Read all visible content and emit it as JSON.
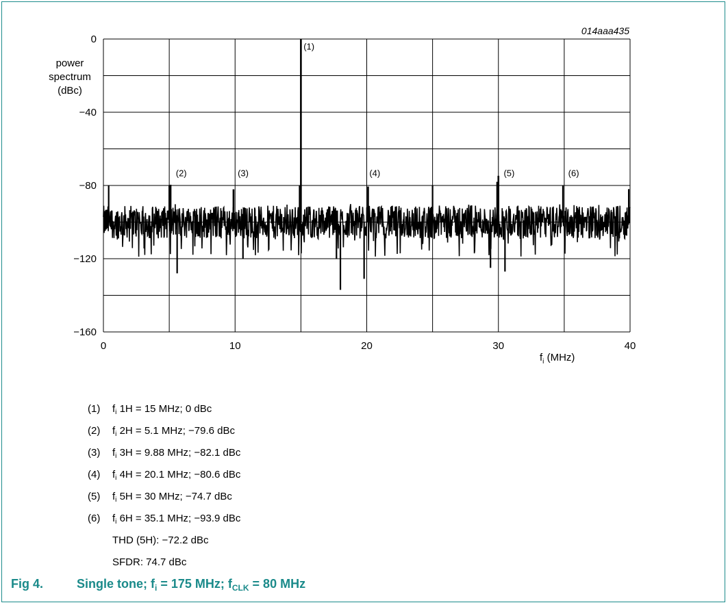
{
  "figure_id": "014aaa435",
  "caption": {
    "number": "Fig 4.",
    "title_prefix": "Single tone; f",
    "sub1": "i",
    "mid": " = 175 MHz; f",
    "sub2": "CLK",
    "suffix": " = 80 MHz"
  },
  "notes": [
    {
      "num": "(1)",
      "f": "f",
      "sub": "i",
      "text": " 1H = 15 MHz; 0 dBc"
    },
    {
      "num": "(2)",
      "f": "f",
      "sub": "i",
      "text": " 2H = 5.1 MHz; −79.6 dBc"
    },
    {
      "num": "(3)",
      "f": "f",
      "sub": "i",
      "text": "  3H = 9.88 MHz; −82.1 dBc"
    },
    {
      "num": "(4)",
      "f": "f",
      "sub": "i",
      "text": " 4H = 20.1 MHz; −80.6 dBc"
    },
    {
      "num": "(5)",
      "f": "f",
      "sub": "i",
      "text": " 5H = 30 MHz; −74.7 dBc"
    },
    {
      "num": "(6)",
      "f": "f",
      "sub": "i",
      "text": " 6H = 35.1 MHz; −93.9 dBc"
    }
  ],
  "extra_notes": [
    "THD (5H): −72.2 dBc",
    "SFDR: 74.7 dBc"
  ],
  "chart_data": {
    "type": "line",
    "ylabel_lines": [
      "power",
      "spectrum",
      "(dBc)"
    ],
    "xlabel_main": "f",
    "xlabel_sub": "i",
    "xlabel_unit": " (MHz)",
    "xlim": [
      0,
      40
    ],
    "ylim": [
      -160,
      0
    ],
    "x_ticks": [
      0,
      10,
      20,
      30,
      40
    ],
    "x_tick_labels": [
      "0",
      "10",
      "20",
      "30",
      "40"
    ],
    "y_ticks": [
      0,
      -40,
      -80,
      -120,
      -160
    ],
    "y_tick_labels": [
      "0",
      "−40",
      "−80",
      "−120",
      "−160"
    ],
    "grid": true,
    "noise_floor_dBc": -100,
    "peaks": [
      {
        "label": "(1)",
        "x": 15,
        "y": 0,
        "label_x": 15.2,
        "label_y": -4
      },
      {
        "label": "(2)",
        "x": 5.1,
        "y": -79.6,
        "label_x": 5.5,
        "label_y": -73
      },
      {
        "label": "(3)",
        "x": 9.88,
        "y": -82.1,
        "label_x": 10.2,
        "label_y": -73
      },
      {
        "label": "(4)",
        "x": 20.1,
        "y": -80.6,
        "label_x": 20.2,
        "label_y": -73
      },
      {
        "label": "(5)",
        "x": 30,
        "y": -74.7,
        "label_x": 30.4,
        "label_y": -73
      },
      {
        "label": "(6)",
        "x": 35.1,
        "y": -93.9,
        "label_x": 35.3,
        "label_y": -73
      }
    ],
    "spurs": [
      {
        "x": 0.4,
        "y": -80
      },
      {
        "x": 5.0,
        "y": -80
      },
      {
        "x": 14.9,
        "y": -80
      },
      {
        "x": 25.0,
        "y": -80
      },
      {
        "x": 29.9,
        "y": -78
      },
      {
        "x": 34.9,
        "y": -80
      },
      {
        "x": 39.9,
        "y": -82
      },
      {
        "x": 5.6,
        "y": -128
      },
      {
        "x": 18.0,
        "y": -137
      },
      {
        "x": 19.8,
        "y": -131
      },
      {
        "x": 29.4,
        "y": -125
      },
      {
        "x": 30.5,
        "y": -127
      },
      {
        "x": 17.7,
        "y": -120
      },
      {
        "x": 10.6,
        "y": -120
      }
    ]
  }
}
